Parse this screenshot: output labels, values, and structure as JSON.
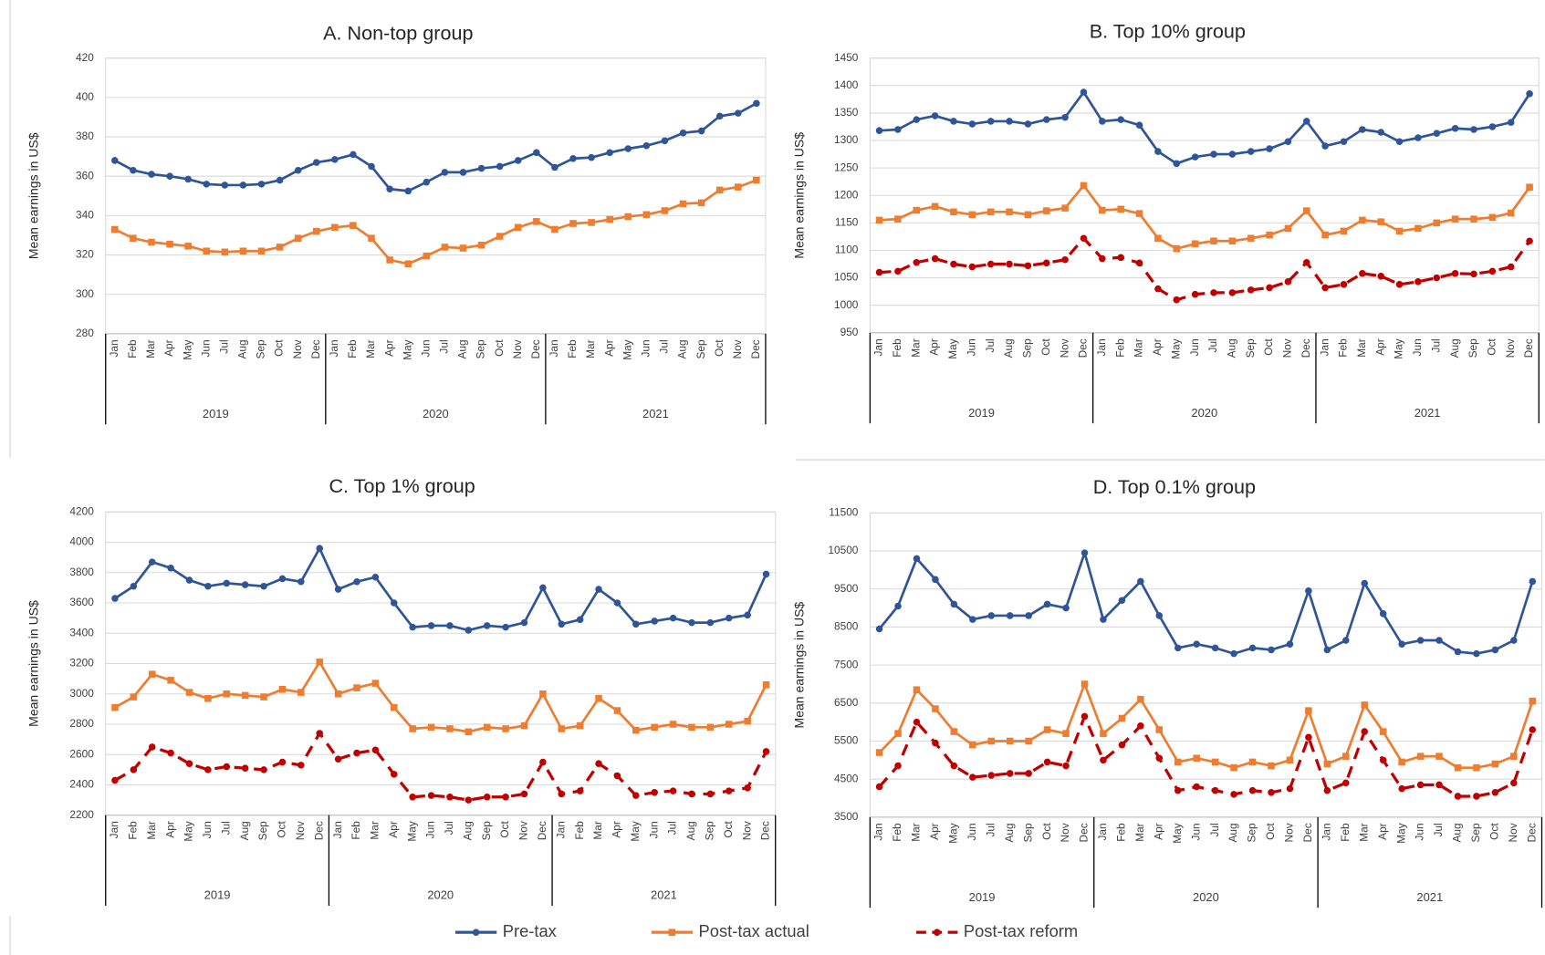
{
  "chart_data": [
    {
      "type": "line",
      "title": "A. Non-top group",
      "ylabel": "Mean earnings in US$",
      "categories": [
        "Jan",
        "Feb",
        "Mar",
        "Apr",
        "May",
        "Jun",
        "Jul",
        "Aug",
        "Sep",
        "Oct",
        "Nov",
        "Dec",
        "Jan",
        "Feb",
        "Mar",
        "Apr",
        "May",
        "Jun",
        "Jul",
        "Aug",
        "Sep",
        "Oct",
        "Nov",
        "Dec",
        "Jan",
        "Feb",
        "Mar",
        "Apr",
        "May",
        "Jun",
        "Jul",
        "Aug",
        "Sep",
        "Oct",
        "Nov",
        "Dec"
      ],
      "year_groups": [
        "2019",
        "2020",
        "2021"
      ],
      "ylim": [
        280,
        420
      ],
      "yticks": [
        280,
        300,
        320,
        340,
        360,
        380,
        400,
        420
      ],
      "grid": true,
      "series": [
        {
          "name": "Pre-tax",
          "color": "#2f5597",
          "marker": "circle",
          "linestyle": "solid",
          "values": [
            368,
            363,
            361,
            360,
            358.5,
            356,
            355.5,
            355.5,
            356,
            358,
            363,
            367,
            368.5,
            371,
            365,
            353.5,
            352.5,
            357,
            362,
            362,
            364,
            365,
            368,
            372,
            364.5,
            369,
            369.5,
            372,
            374,
            375.5,
            378,
            382,
            383,
            390.5,
            392,
            397
          ]
        },
        {
          "name": "Post-tax actual",
          "color": "#ed7d31",
          "marker": "square",
          "linestyle": "solid",
          "values": [
            333,
            328.5,
            326.5,
            325.5,
            324.5,
            322,
            321.5,
            322,
            322,
            324,
            328.5,
            332,
            334,
            335,
            328.5,
            317.5,
            315.5,
            319.5,
            324,
            323.5,
            325,
            329.5,
            334,
            337,
            333,
            336,
            336.5,
            338,
            339.5,
            340.5,
            342.5,
            346,
            346.5,
            353,
            354.5,
            358
          ]
        }
      ]
    },
    {
      "type": "line",
      "title": "B. Top 10% group",
      "ylabel": "Mean earnings in US$",
      "categories": [
        "Jan",
        "Feb",
        "Mar",
        "Apr",
        "May",
        "Jun",
        "Jul",
        "Aug",
        "Sep",
        "Oct",
        "Nov",
        "Dec",
        "Jan",
        "Feb",
        "Mar",
        "Apr",
        "May",
        "Jun",
        "Jul",
        "Aug",
        "Sep",
        "Oct",
        "Nov",
        "Dec",
        "Jan",
        "Feb",
        "Mar",
        "Apr",
        "May",
        "Jun",
        "Jul",
        "Aug",
        "Sep",
        "Oct",
        "Nov",
        "Dec"
      ],
      "year_groups": [
        "2019",
        "2020",
        "2021"
      ],
      "ylim": [
        950,
        1450
      ],
      "yticks": [
        950,
        1000,
        1050,
        1100,
        1150,
        1200,
        1250,
        1300,
        1350,
        1400,
        1450
      ],
      "grid": true,
      "series": [
        {
          "name": "Pre-tax",
          "color": "#2f5597",
          "marker": "circle",
          "linestyle": "solid",
          "values": [
            1318,
            1320,
            1338,
            1345,
            1335,
            1330,
            1335,
            1335,
            1330,
            1338,
            1342,
            1388,
            1335,
            1338,
            1328,
            1280,
            1258,
            1270,
            1275,
            1275,
            1280,
            1285,
            1298,
            1335,
            1290,
            1298,
            1320,
            1315,
            1298,
            1305,
            1313,
            1322,
            1320,
            1325,
            1333,
            1385
          ]
        },
        {
          "name": "Post-tax actual",
          "color": "#ed7d31",
          "marker": "square",
          "linestyle": "solid",
          "values": [
            1155,
            1157,
            1173,
            1180,
            1170,
            1165,
            1170,
            1170,
            1165,
            1172,
            1177,
            1218,
            1173,
            1175,
            1167,
            1122,
            1103,
            1112,
            1117,
            1117,
            1122,
            1128,
            1140,
            1172,
            1128,
            1135,
            1155,
            1152,
            1135,
            1140,
            1150,
            1157,
            1157,
            1160,
            1168,
            1215
          ]
        },
        {
          "name": "Post-tax reform",
          "color": "#c00000",
          "marker": "circle",
          "linestyle": "dashed",
          "values": [
            1060,
            1062,
            1078,
            1085,
            1075,
            1070,
            1075,
            1075,
            1072,
            1077,
            1083,
            1122,
            1085,
            1087,
            1077,
            1030,
            1010,
            1020,
            1023,
            1023,
            1028,
            1032,
            1043,
            1078,
            1032,
            1038,
            1058,
            1053,
            1038,
            1043,
            1050,
            1058,
            1057,
            1062,
            1070,
            1117
          ]
        }
      ]
    },
    {
      "type": "line",
      "title": "C. Top 1% group",
      "ylabel": "Mean earnings in US$",
      "categories": [
        "Jan",
        "Feb",
        "Mar",
        "Apr",
        "May",
        "Jun",
        "Jul",
        "Aug",
        "Sep",
        "Oct",
        "Nov",
        "Dec",
        "Jan",
        "Feb",
        "Mar",
        "Apr",
        "May",
        "Jun",
        "Jul",
        "Aug",
        "Sep",
        "Oct",
        "Nov",
        "Dec",
        "Jan",
        "Feb",
        "Mar",
        "Apr",
        "May",
        "Jun",
        "Jul",
        "Aug",
        "Sep",
        "Oct",
        "Nov",
        "Dec"
      ],
      "year_groups": [
        "2019",
        "2020",
        "2021"
      ],
      "ylim": [
        2200,
        4200
      ],
      "yticks": [
        2200,
        2400,
        2600,
        2800,
        3000,
        3200,
        3400,
        3600,
        3800,
        4000,
        4200
      ],
      "grid": true,
      "series": [
        {
          "name": "Pre-tax",
          "color": "#2f5597",
          "marker": "circle",
          "linestyle": "solid",
          "values": [
            3630,
            3710,
            3870,
            3830,
            3750,
            3710,
            3730,
            3720,
            3710,
            3760,
            3740,
            3960,
            3690,
            3740,
            3770,
            3600,
            3440,
            3450,
            3450,
            3420,
            3450,
            3440,
            3470,
            3700,
            3460,
            3490,
            3690,
            3600,
            3460,
            3480,
            3500,
            3470,
            3470,
            3500,
            3520,
            3790
          ]
        },
        {
          "name": "Post-tax actual",
          "color": "#ed7d31",
          "marker": "square",
          "linestyle": "solid",
          "values": [
            2910,
            2980,
            3130,
            3090,
            3010,
            2970,
            3000,
            2990,
            2980,
            3030,
            3010,
            3210,
            3000,
            3040,
            3070,
            2910,
            2770,
            2780,
            2770,
            2750,
            2780,
            2770,
            2790,
            3000,
            2770,
            2790,
            2970,
            2890,
            2760,
            2780,
            2800,
            2780,
            2780,
            2800,
            2820,
            3060
          ]
        },
        {
          "name": "Post-tax reform",
          "color": "#c00000",
          "marker": "circle",
          "linestyle": "dashed",
          "values": [
            2430,
            2500,
            2650,
            2610,
            2540,
            2500,
            2520,
            2510,
            2500,
            2550,
            2530,
            2740,
            2570,
            2610,
            2630,
            2470,
            2320,
            2330,
            2320,
            2300,
            2320,
            2320,
            2340,
            2550,
            2340,
            2360,
            2540,
            2460,
            2330,
            2350,
            2360,
            2340,
            2340,
            2360,
            2380,
            2620
          ]
        }
      ]
    },
    {
      "type": "line",
      "title": "D. Top 0.1% group",
      "ylabel": "Mean earnings in US$",
      "categories": [
        "Jan",
        "Feb",
        "Mar",
        "Apr",
        "May",
        "Jun",
        "Jul",
        "Aug",
        "Sep",
        "Oct",
        "Nov",
        "Dec",
        "Jan",
        "Feb",
        "Mar",
        "Apr",
        "May",
        "Jun",
        "Jul",
        "Aug",
        "Sep",
        "Oct",
        "Nov",
        "Dec",
        "Jan",
        "Feb",
        "Mar",
        "Apr",
        "May",
        "Jun",
        "Jul",
        "Aug",
        "Sep",
        "Oct",
        "Nov",
        "Dec"
      ],
      "year_groups": [
        "2019",
        "2020",
        "2021"
      ],
      "ylim": [
        3500,
        11500
      ],
      "yticks": [
        3500,
        4500,
        5500,
        6500,
        7500,
        8500,
        9500,
        10500,
        11500
      ],
      "grid": true,
      "series": [
        {
          "name": "Pre-tax",
          "color": "#2f5597",
          "marker": "circle",
          "linestyle": "solid",
          "values": [
            8450,
            9050,
            10300,
            9750,
            9100,
            8700,
            8800,
            8800,
            8800,
            9100,
            9000,
            10450,
            8700,
            9200,
            9700,
            8800,
            7950,
            8050,
            7950,
            7800,
            7950,
            7900,
            8050,
            9450,
            7900,
            8150,
            9650,
            8850,
            8050,
            8150,
            8150,
            7850,
            7800,
            7900,
            8150,
            9700
          ]
        },
        {
          "name": "Post-tax actual",
          "color": "#ed7d31",
          "marker": "square",
          "linestyle": "solid",
          "values": [
            5200,
            5700,
            6850,
            6350,
            5750,
            5400,
            5500,
            5500,
            5500,
            5800,
            5700,
            7000,
            5700,
            6100,
            6600,
            5800,
            4950,
            5050,
            4950,
            4800,
            4950,
            4850,
            5000,
            6300,
            4900,
            5100,
            6450,
            5750,
            4950,
            5100,
            5100,
            4800,
            4800,
            4900,
            5100,
            6550
          ]
        },
        {
          "name": "Post-tax reform",
          "color": "#c00000",
          "marker": "circle",
          "linestyle": "dashed",
          "values": [
            4300,
            4850,
            6000,
            5450,
            4850,
            4550,
            4600,
            4650,
            4650,
            4950,
            4850,
            6150,
            5000,
            5400,
            5900,
            5050,
            4200,
            4300,
            4200,
            4100,
            4200,
            4150,
            4250,
            5600,
            4200,
            4400,
            5750,
            5000,
            4250,
            4350,
            4350,
            4050,
            4050,
            4150,
            4400,
            5800
          ]
        }
      ]
    }
  ]
}
